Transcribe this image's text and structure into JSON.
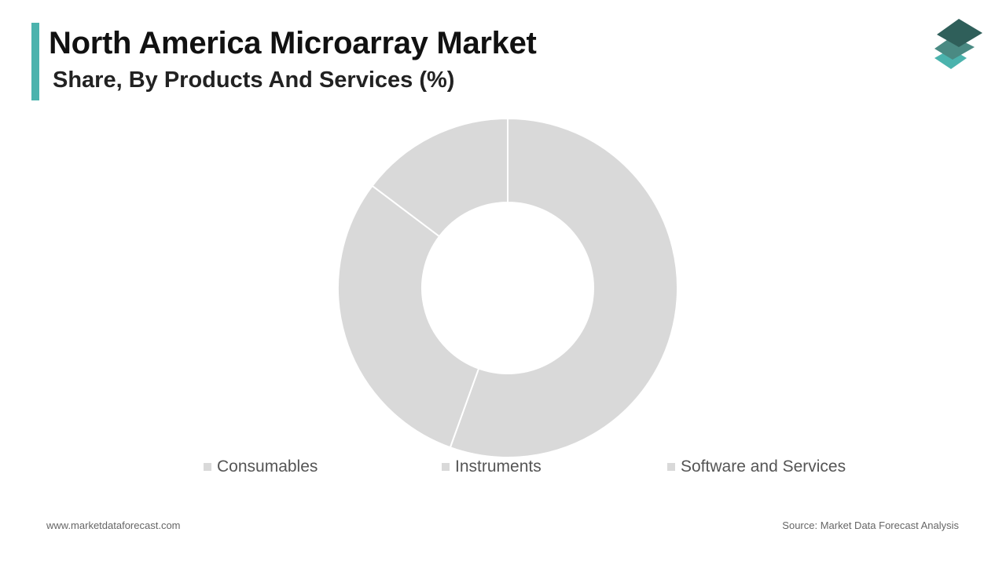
{
  "header": {
    "title": "North America Microarray Market",
    "subtitle": "Share, By Products And Services (%)"
  },
  "colors": {
    "accent": "#4bb3ad",
    "slice": "#d9d9d9",
    "legend_swatch": "#d9d9d9",
    "logo_top": "#2f5f5a",
    "logo_middle": "#4a8a83",
    "logo_bottom": "#4bb3ad"
  },
  "logo": {
    "icon": "stacked-layers-icon"
  },
  "chart_data": {
    "type": "pie",
    "subtype": "donut",
    "title": "North America Microarray Market",
    "subtitle": "Share, By Products And Services (%)",
    "categories": [
      "Consumables",
      "Instruments",
      "Software and Services"
    ],
    "values": [
      55.5,
      29.8,
      14.7
    ],
    "unit": "%",
    "legend_position": "bottom"
  },
  "footer": {
    "website": "www.marketdataforecast.com",
    "source": "Source: Market Data Forecast Analysis"
  }
}
